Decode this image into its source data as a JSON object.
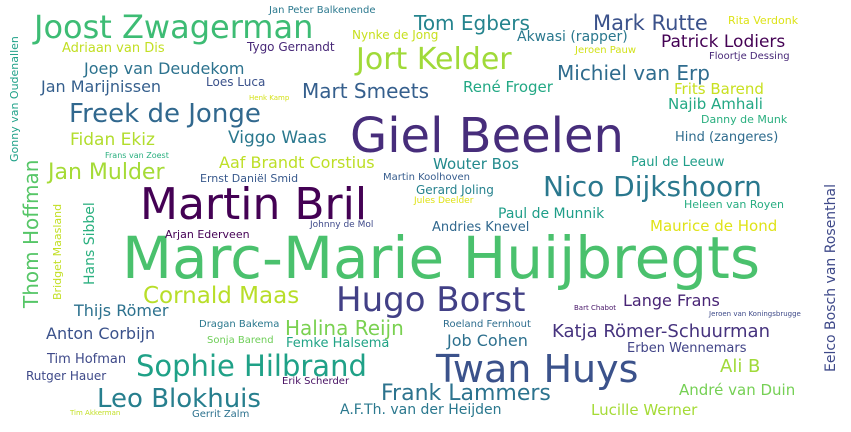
{
  "palette": {
    "dark_purple": "#440154",
    "purple": "#482878",
    "indigo": "#3e4a89",
    "blue": "#31688e",
    "teal": "#26828e",
    "sea_green": "#1f9e89",
    "green": "#35b779",
    "light_green": "#6ece58",
    "lime": "#b5de2b",
    "yellow": "#fde725"
  },
  "words": [
    {
      "text": "Marc-Marie Huijbregts",
      "weight": 1.0,
      "color": "#4ac16d"
    },
    {
      "text": "Giel Beelen",
      "weight": 0.8,
      "color": "#472d7b"
    },
    {
      "text": "Martin Bril",
      "weight": 0.7,
      "color": "#440154"
    },
    {
      "text": "Twan Huys",
      "weight": 0.6,
      "color": "#3b528b"
    },
    {
      "text": "Hugo Borst",
      "weight": 0.57,
      "color": "#424086"
    },
    {
      "text": "Joost Zwagerman",
      "weight": 0.55,
      "color": "#3dbc74"
    },
    {
      "text": "Jort Kelder",
      "weight": 0.5,
      "color": "#a0da39"
    },
    {
      "text": "Nico Dijkshoorn",
      "weight": 0.48,
      "color": "#2a788e"
    },
    {
      "text": "Sophie Hilbrand",
      "weight": 0.47,
      "color": "#1fa187"
    },
    {
      "text": "Freek de Jonge",
      "weight": 0.42,
      "color": "#31688e"
    },
    {
      "text": "Leo Blokhuis",
      "weight": 0.42,
      "color": "#277f8e"
    },
    {
      "text": "Cornald Maas",
      "weight": 0.42,
      "color": "#b8de29"
    },
    {
      "text": "Frank Lammers",
      "weight": 0.4,
      "color": "#2c738e"
    },
    {
      "text": "Jan Mulder",
      "weight": 0.38,
      "color": "#a5db36"
    },
    {
      "text": "Halina Reijn",
      "weight": 0.34,
      "color": "#7ad151"
    },
    {
      "text": "Thom Hoffman",
      "weight": 0.32,
      "color": "#56c667"
    },
    {
      "text": "Michiel van Erp",
      "weight": 0.32,
      "color": "#2f6c8e"
    },
    {
      "text": "Tom Egbers",
      "weight": 0.31,
      "color": "#25848e"
    },
    {
      "text": "Mark Rutte",
      "weight": 0.3,
      "color": "#3b528b"
    },
    {
      "text": "Mart Smeets",
      "weight": 0.3,
      "color": "#355f8d"
    },
    {
      "text": "Katja Römer-Schuurman",
      "weight": 0.28,
      "color": "#46337e"
    },
    {
      "text": "Ali B",
      "weight": 0.28,
      "color": "#a0da39"
    },
    {
      "text": "Joep van Deudekom",
      "weight": 0.25,
      "color": "#2c728e"
    },
    {
      "text": "Patrick Lodiers",
      "weight": 0.25,
      "color": "#440154"
    },
    {
      "text": "Lange Frans",
      "weight": 0.25,
      "color": "#482475"
    },
    {
      "text": "Viggo Waas",
      "weight": 0.24,
      "color": "#2a788e"
    },
    {
      "text": "Aaf Brandt Corstius",
      "weight": 0.24,
      "color": "#bddf26"
    },
    {
      "text": "Fidan Ekiz",
      "weight": 0.24,
      "color": "#b2dd2d"
    },
    {
      "text": "Jan Marijnissen",
      "weight": 0.23,
      "color": "#355f8d"
    },
    {
      "text": "Anton Corbijn",
      "weight": 0.23,
      "color": "#3b528b"
    },
    {
      "text": "Job Cohen",
      "weight": 0.23,
      "color": "#2d708e"
    },
    {
      "text": "Thijs Römer",
      "weight": 0.23,
      "color": "#2c718e"
    },
    {
      "text": "René Froger",
      "weight": 0.22,
      "color": "#22a884"
    },
    {
      "text": "Frits Barend",
      "weight": 0.22,
      "color": "#c8e020"
    },
    {
      "text": "Najib Amhali",
      "weight": 0.22,
      "color": "#22a884"
    },
    {
      "text": "Wouter Bos",
      "weight": 0.21,
      "color": "#238a8d"
    },
    {
      "text": "Paul de Munnik",
      "weight": 0.21,
      "color": "#1f9e89"
    },
    {
      "text": "Maurice de Hond",
      "weight": 0.21,
      "color": "#dfe318"
    },
    {
      "text": "André van Duin",
      "weight": 0.21,
      "color": "#75d054"
    },
    {
      "text": "Lucille Werner",
      "weight": 0.21,
      "color": "#a5db36"
    },
    {
      "text": "A.F.Th. van der Heijden",
      "weight": 0.2,
      "color": "#2a788e"
    },
    {
      "text": "Hans Sibbel",
      "weight": 0.19,
      "color": "#2ab07f"
    },
    {
      "text": "Eelco Bosch van Rosenthal",
      "weight": 0.19,
      "color": "#3e4989"
    },
    {
      "text": "Adriaan van Dis",
      "weight": 0.18,
      "color": "#c2df23"
    },
    {
      "text": "Akwasi (rapper)",
      "weight": 0.18,
      "color": "#2a788e"
    },
    {
      "text": "Andries Knevel",
      "weight": 0.17,
      "color": "#31688e"
    },
    {
      "text": "Femke Halsema",
      "weight": 0.17,
      "color": "#20a386"
    },
    {
      "text": "Erben Wennemars",
      "weight": 0.17,
      "color": "#414487"
    },
    {
      "text": "Hind (zangeres)",
      "weight": 0.17,
      "color": "#2f6c8e"
    },
    {
      "text": "Paul de Leeuw",
      "weight": 0.16,
      "color": "#1f9e89"
    },
    {
      "text": "Tim Hofman",
      "weight": 0.16,
      "color": "#3e4989"
    },
    {
      "text": "Gonny van Oudenallen",
      "weight": 0.16,
      "color": "#1fa188"
    },
    {
      "text": "Nynke de Jong",
      "weight": 0.16,
      "color": "#c8e020"
    },
    {
      "text": "Loes Luca",
      "weight": 0.16,
      "color": "#3b528b"
    },
    {
      "text": "Tygo Gernandt",
      "weight": 0.16,
      "color": "#482878"
    },
    {
      "text": "Rutger Hauer",
      "weight": 0.15,
      "color": "#3e4989"
    },
    {
      "text": "Gerard Joling",
      "weight": 0.15,
      "color": "#26828e"
    },
    {
      "text": "Heleen van Royen",
      "weight": 0.15,
      "color": "#27ad81"
    },
    {
      "text": "Danny de Munk",
      "weight": 0.15,
      "color": "#29af7f"
    },
    {
      "text": "Bridget Maasland",
      "weight": 0.15,
      "color": "#c2df23"
    },
    {
      "text": "Rita Verdonk",
      "weight": 0.15,
      "color": "#dde318"
    },
    {
      "text": "Jeroen Pauw",
      "weight": 0.15,
      "color": "#d2e21b"
    },
    {
      "text": "Arjan Ederveen",
      "weight": 0.15,
      "color": "#440154"
    },
    {
      "text": "Roeland Fernhout",
      "weight": 0.14,
      "color": "#2e6d8e"
    },
    {
      "text": "Ernst Daniël Smid",
      "weight": 0.14,
      "color": "#38598c"
    },
    {
      "text": "Martin Koolhoven",
      "weight": 0.14,
      "color": "#365c8d"
    },
    {
      "text": "Floortje Dessing",
      "weight": 0.14,
      "color": "#482878"
    },
    {
      "text": "Dragan Bakema",
      "weight": 0.14,
      "color": "#2a788e"
    },
    {
      "text": "Sonja Barend",
      "weight": 0.14,
      "color": "#6ece58"
    },
    {
      "text": "Erik Scherder",
      "weight": 0.14,
      "color": "#471063"
    },
    {
      "text": "Gerrit Zalm",
      "weight": 0.13,
      "color": "#2c728e"
    },
    {
      "text": "Jan Peter Balkenende",
      "weight": 0.13,
      "color": "#2a788e"
    },
    {
      "text": "Jules Deelder",
      "weight": 0.12,
      "color": "#dfe318"
    },
    {
      "text": "Johnny de Mol",
      "weight": 0.12,
      "color": "#3e4989"
    },
    {
      "text": "Frans van Zoest",
      "weight": 0.11,
      "color": "#29af7f"
    },
    {
      "text": "Henk Kamp",
      "weight": 0.1,
      "color": "#d5e21a"
    },
    {
      "text": "Tim Akkerman",
      "weight": 0.1,
      "color": "#c2df23"
    },
    {
      "text": "Bart Chabot",
      "weight": 0.1,
      "color": "#481769"
    },
    {
      "text": "Jeroen van Koningsbrugge",
      "weight": 0.1,
      "color": "#3e4a89"
    }
  ]
}
